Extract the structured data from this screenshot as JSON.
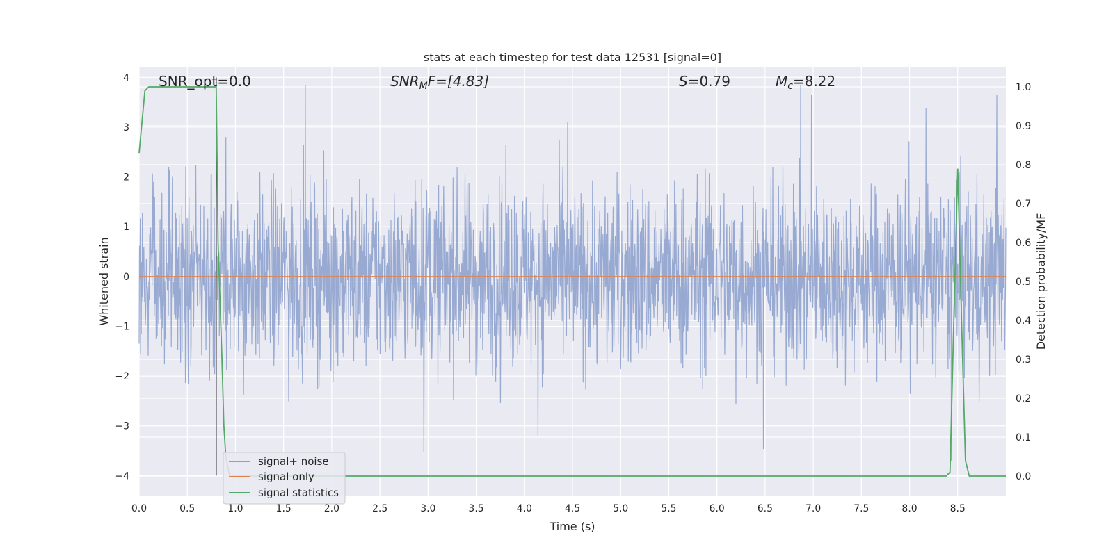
{
  "chart_data": {
    "type": "line",
    "title": "stats at each timestep for test data 12531 [signal=0]",
    "xlabel": "Time (s)",
    "ylabel_left": "Whitened strain",
    "ylabel_right": "Detection probability/MF",
    "xlim": [
      0,
      9.0
    ],
    "ylim_left": [
      -4.4,
      4.2
    ],
    "ylim_right": [
      -0.05,
      1.05
    ],
    "xticks": [
      "0.0",
      "0.5",
      "1.0",
      "1.5",
      "2.0",
      "2.5",
      "3.0",
      "3.5",
      "4.0",
      "4.5",
      "5.0",
      "5.5",
      "6.0",
      "6.5",
      "7.0",
      "7.5",
      "8.0",
      "8.5"
    ],
    "yticks_left": [
      "4",
      "3",
      "2",
      "1",
      "0",
      "−1",
      "−2",
      "−3",
      "−4"
    ],
    "yticks_right": [
      "1.0",
      "0.9",
      "0.8",
      "0.7",
      "0.6",
      "0.5",
      "0.4",
      "0.3",
      "0.2",
      "0.1",
      "0.0"
    ],
    "grid": true,
    "legend_placement": "lower-left",
    "annotations": {
      "snr_opt": "SNR_opt=0.0",
      "snr_mf_main": "SNR",
      "snr_mf_sub": "M",
      "snr_mf_rest": "F=[4.83]",
      "s_main": "S",
      "s_rest": "=0.79",
      "mc_main": "M",
      "mc_sub": "c",
      "mc_rest": "=8.22"
    },
    "marker_line_x": 0.8,
    "series": [
      {
        "name": "signal+ noise",
        "axis": "left",
        "color": "#8a9fcc",
        "style": "noise",
        "amplitude_sigma": 1.0,
        "range": [
          -3.7,
          3.85
        ]
      },
      {
        "name": "signal only",
        "axis": "left",
        "color": "#dd8452",
        "constant": 0.0
      },
      {
        "name": "signal statistics",
        "axis": "right",
        "color": "#55a868",
        "x": [
          0.0,
          0.06,
          0.1,
          0.2,
          0.4,
          0.6,
          0.75,
          0.8,
          0.82,
          0.86,
          0.88,
          0.9,
          0.94,
          1.0,
          2.0,
          3.0,
          4.0,
          5.0,
          6.0,
          7.0,
          8.0,
          8.38,
          8.42,
          8.46,
          8.5,
          8.54,
          8.58,
          8.62,
          9.0
        ],
        "y": [
          0.83,
          0.99,
          1.0,
          1.0,
          1.0,
          1.0,
          1.0,
          1.0,
          0.6,
          0.3,
          0.13,
          0.05,
          0.0,
          0.0,
          0.0,
          0.0,
          0.0,
          0.0,
          0.0,
          0.0,
          0.0,
          0.0,
          0.01,
          0.4,
          0.79,
          0.4,
          0.04,
          0.0,
          0.0
        ]
      }
    ]
  }
}
